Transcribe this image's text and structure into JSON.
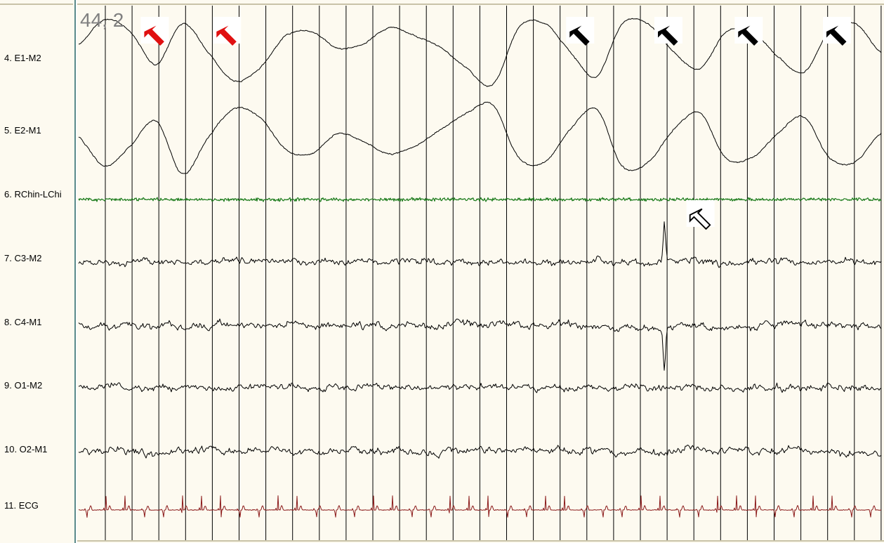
{
  "time_label": "44, 2",
  "colors": {
    "background": "#fdfaf0",
    "grid": "#000000",
    "trace": "#000000",
    "chin": "#1a7a1a",
    "ecg": "#8b1a1a",
    "marker_red": "#e01010",
    "marker_black": "#000000"
  },
  "chart_data": {
    "type": "line",
    "title": "",
    "xlabel": "",
    "ylabel": "",
    "grid": "vertical lines at regular intervals",
    "series": [
      {
        "name": "4. E1-M2",
        "color": "#000000",
        "kind": "eog",
        "values": [
          0.3,
          0.9,
          0.6,
          -0.2,
          0.8,
          0.1,
          -0.6,
          -0.3,
          0.5,
          0.6,
          0.2,
          0.3,
          0.7,
          0.5,
          0.2,
          -0.3,
          -0.7,
          0.7,
          0.8,
          0.1,
          -0.5,
          0.8,
          0.8,
          0.1,
          -0.3,
          0.6,
          0.6,
          0.0,
          -0.4,
          0.6,
          0.8,
          0.1
        ]
      },
      {
        "name": "5. E2-M1",
        "color": "#000000",
        "kind": "eog",
        "values": [
          -0.1,
          -0.8,
          -0.3,
          0.3,
          -1.0,
          -0.1,
          0.6,
          0.4,
          -0.4,
          -0.5,
          0.0,
          -0.2,
          -0.5,
          -0.3,
          0.1,
          0.5,
          0.7,
          -0.6,
          -0.7,
          0.1,
          0.6,
          -0.8,
          -0.7,
          0.1,
          0.5,
          -0.6,
          -0.6,
          0.0,
          0.4,
          -0.6,
          -0.7,
          0.0
        ]
      },
      {
        "name": "6. RChin-LChi",
        "color": "#1a7a1a",
        "kind": "emg"
      },
      {
        "name": "7. C3-M2",
        "color": "#000000",
        "kind": "eeg",
        "events": [
          {
            "x_frac": 0.73,
            "amp": -1.0
          }
        ]
      },
      {
        "name": "8. C4-M1",
        "color": "#000000",
        "kind": "eeg",
        "events": [
          {
            "x_frac": 0.73,
            "amp": 1.0
          }
        ]
      },
      {
        "name": "9. O1-M2",
        "color": "#000000",
        "kind": "eeg"
      },
      {
        "name": "10. O2-M1",
        "color": "#000000",
        "kind": "eeg"
      },
      {
        "name": "11. ECG",
        "color": "#8b1a1a",
        "kind": "ecg",
        "beats": 42
      }
    ],
    "markers": [
      {
        "type": "filled-arrow",
        "color": "red",
        "near_trace": "4. E1-M2",
        "x_frac": 0.08
      },
      {
        "type": "filled-arrow",
        "color": "red",
        "near_trace": "4. E1-M2",
        "x_frac": 0.17
      },
      {
        "type": "filled-arrow",
        "color": "black",
        "near_trace": "4. E1-M2",
        "x_frac": 0.61
      },
      {
        "type": "filled-arrow",
        "color": "black",
        "near_trace": "4. E1-M2",
        "x_frac": 0.72
      },
      {
        "type": "filled-arrow",
        "color": "black",
        "near_trace": "4. E1-M2",
        "x_frac": 0.82
      },
      {
        "type": "filled-arrow",
        "color": "black",
        "near_trace": "4. E1-M2",
        "x_frac": 0.93
      },
      {
        "type": "outline-arrow",
        "color": "black",
        "near_trace": "7. C3-M2",
        "x_frac": 0.76
      }
    ]
  }
}
